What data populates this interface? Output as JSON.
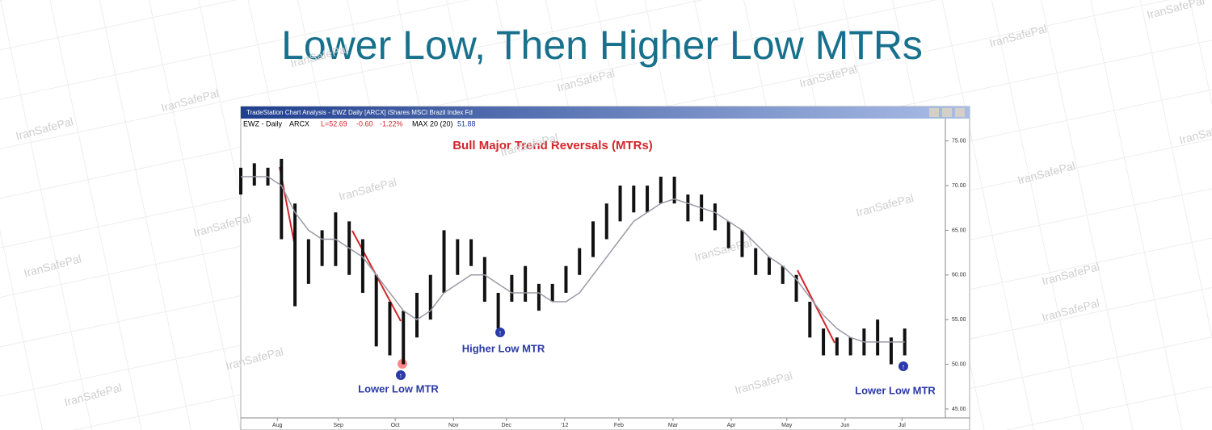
{
  "slide_title": "Lower Low, Then Higher Low MTRs",
  "watermark": "IranSafePal",
  "window_title": "TradeStation Chart Analysis - EWZ Daily [ARCX] iShares MSCI Brazil Index Fd",
  "header": [
    "EWZ - Daily",
    "ARCX",
    "L=52.69",
    "-0.60",
    "-1.22%",
    "MAX 20 (20)",
    "51.88"
  ],
  "chart_data": {
    "type": "ohlc",
    "title": "Bull Major Trend Reversals (MTRs)",
    "annotations": [
      "Lower Low MTR",
      "Higher Low MTR",
      "Lower Low MTR"
    ],
    "x": [
      0,
      1,
      2,
      3,
      4,
      5,
      6,
      7,
      8,
      9,
      10,
      11,
      12,
      13,
      14,
      15,
      16,
      17,
      18,
      19,
      20,
      21,
      22,
      23,
      24,
      25,
      26,
      27,
      28,
      29,
      30,
      31,
      32,
      33,
      34,
      35,
      36,
      37,
      38,
      39,
      40,
      41,
      42,
      43,
      44,
      45,
      46,
      47,
      48,
      49
    ],
    "xlim": [
      0,
      52
    ],
    "xticks": [
      {
        "value": 2.7,
        "label": "Aug"
      },
      {
        "value": 7.2,
        "label": "Sep"
      },
      {
        "value": 11.4,
        "label": "Oct"
      },
      {
        "value": 15.7,
        "label": "Nov"
      },
      {
        "value": 19.6,
        "label": "Dec"
      },
      {
        "value": 23.9,
        "label": "'12"
      },
      {
        "value": 27.9,
        "label": "Feb"
      },
      {
        "value": 31.9,
        "label": "Mar"
      },
      {
        "value": 36.2,
        "label": "Apr"
      },
      {
        "value": 40.3,
        "label": "May"
      },
      {
        "value": 44.6,
        "label": "Jun"
      },
      {
        "value": 48.8,
        "label": "Jul"
      }
    ],
    "ylim": [
      44,
      77.5
    ],
    "yticks": [
      {
        "value": 45,
        "label": "45.00"
      },
      {
        "value": 50,
        "label": "50.00"
      },
      {
        "value": 55,
        "label": "55.00"
      },
      {
        "value": 60,
        "label": "60.00"
      },
      {
        "value": 65,
        "label": "65.00"
      },
      {
        "value": 70,
        "label": "70.00"
      },
      {
        "value": 75,
        "label": "75.00"
      }
    ],
    "series": [
      {
        "color": "#111111",
        "high": [
          72,
          72.5,
          72,
          73,
          68,
          64,
          65,
          67,
          66,
          64,
          60,
          57,
          56,
          58,
          60,
          65,
          64,
          64,
          62,
          58,
          60,
          61,
          59,
          59,
          61,
          63,
          66,
          68,
          70,
          70,
          70,
          71,
          71,
          69,
          69,
          68,
          66,
          65,
          63,
          62,
          61,
          60,
          57,
          54,
          53,
          53,
          54,
          55,
          53,
          54
        ],
        "low": [
          69,
          70,
          70,
          64,
          56.5,
          59,
          61,
          61,
          60,
          58,
          52,
          51,
          50,
          53,
          55,
          58,
          60,
          61,
          57,
          54,
          57,
          57,
          56,
          57,
          58,
          60,
          62,
          64,
          66,
          67,
          67,
          68,
          68,
          66,
          66,
          65,
          63,
          62,
          60,
          60,
          59,
          57,
          53,
          51,
          51,
          51,
          51,
          51,
          50,
          51
        ]
      },
      {
        "color": "#9a9aa6",
        "values": [
          71,
          71,
          71,
          70,
          67,
          65,
          64,
          64,
          63,
          62,
          60,
          58,
          56,
          55,
          56,
          58,
          59,
          60,
          60,
          59,
          58,
          58,
          58,
          57,
          57,
          58,
          60,
          62,
          64,
          66,
          67,
          68,
          68.5,
          68,
          67.5,
          67,
          66,
          65,
          63.5,
          62,
          61,
          59.5,
          57.5,
          55.5,
          54,
          53,
          52.5,
          52.5,
          52.5,
          52.5
        ]
      }
    ]
  }
}
